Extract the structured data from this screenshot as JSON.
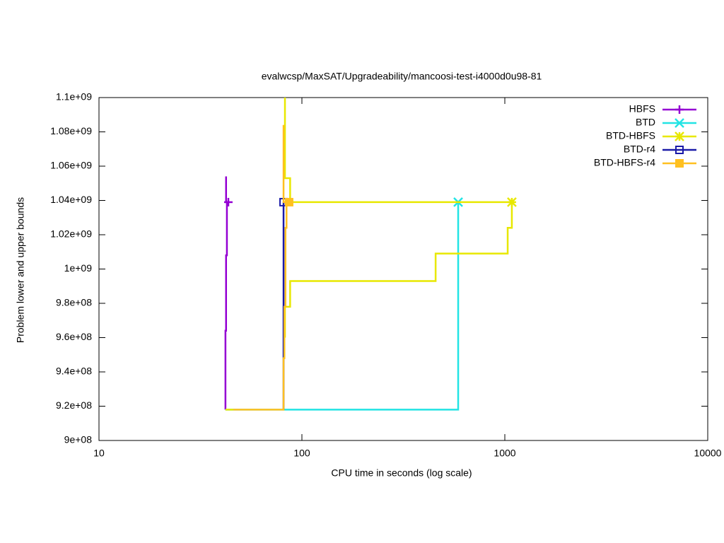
{
  "chart_data": {
    "type": "line",
    "title": "evalwcsp/MaxSAT/Upgradeability/mancoosi-test-i4000d0u98-81",
    "x_label": "CPU time in seconds (log scale)",
    "y_label": "Problem lower and upper bounds",
    "xlog": true,
    "xlim": [
      10,
      10000
    ],
    "xticks": [
      10,
      100,
      1000,
      10000
    ],
    "ylim": [
      900000000,
      1100000000
    ],
    "yticks": [
      {
        "value": 900000000,
        "label": "9e+08"
      },
      {
        "value": 920000000,
        "label": "9.2e+08"
      },
      {
        "value": 940000000,
        "label": "9.4e+08"
      },
      {
        "value": 960000000,
        "label": "9.6e+08"
      },
      {
        "value": 980000000,
        "label": "9.8e+08"
      },
      {
        "value": 1000000000,
        "label": "1e+09"
      },
      {
        "value": 1020000000,
        "label": "1.02e+09"
      },
      {
        "value": 1040000000,
        "label": "1.04e+09"
      },
      {
        "value": 1060000000,
        "label": "1.06e+09"
      },
      {
        "value": 1080000000,
        "label": "1.08e+09"
      },
      {
        "value": 1100000000,
        "label": "1.1e+09"
      }
    ],
    "legend": "top right",
    "series": [
      {
        "name": "HBFS",
        "color": "#9400d3",
        "marker": "plus",
        "x": [
          42.0,
          42.0,
          42.3,
          42.3,
          42.7,
          42.7,
          null,
          42.3,
          42.3,
          43.4
        ],
        "values": [
          918000000,
          964000000,
          964000000,
          1008000000,
          1008000000,
          1039000000,
          null,
          1054000000,
          1039000000,
          1039000000
        ]
      },
      {
        "name": "BTD",
        "color": "#22e4e4",
        "marker": "cross",
        "x": [
          42.0,
          589,
          589
        ],
        "values": [
          918000000,
          918000000,
          1039000000
        ]
      },
      {
        "name": "BTD-HBFS",
        "color": "#e8e800",
        "marker": "star",
        "x": [
          42.0,
          45.9,
          null,
          82.5,
          82.5,
          87.5,
          87.5,
          456,
          456,
          1033,
          1033,
          1083,
          1083,
          null,
          82.5,
          82.5,
          87.5,
          87.5,
          1083
        ],
        "values": [
          918000000,
          918000000,
          null,
          960000000,
          978000000,
          978000000,
          993000000,
          993000000,
          1009000000,
          1009000000,
          1024000000,
          1024000000,
          1039000000,
          null,
          1100000000,
          1053000000,
          1053000000,
          1039000000,
          1039000000
        ]
      },
      {
        "name": "BTD-r4",
        "color": "#1a1aa8",
        "marker": "open-square",
        "x": [
          81.2,
          81.2
        ],
        "values": [
          918000000,
          1039000000
        ]
      },
      {
        "name": "BTD-HBFS-r4",
        "color": "#ffc020",
        "marker": "filled-square",
        "x": [
          45.9,
          81.2,
          81.2,
          82,
          82,
          83,
          83,
          84,
          84,
          null,
          81.2,
          81.2,
          86.5
        ],
        "values": [
          918000000,
          918000000,
          948000000,
          948000000,
          978000000,
          978000000,
          1024000000,
          1024000000,
          1039000000,
          null,
          1084000000,
          1039000000,
          1039000000
        ]
      }
    ]
  }
}
